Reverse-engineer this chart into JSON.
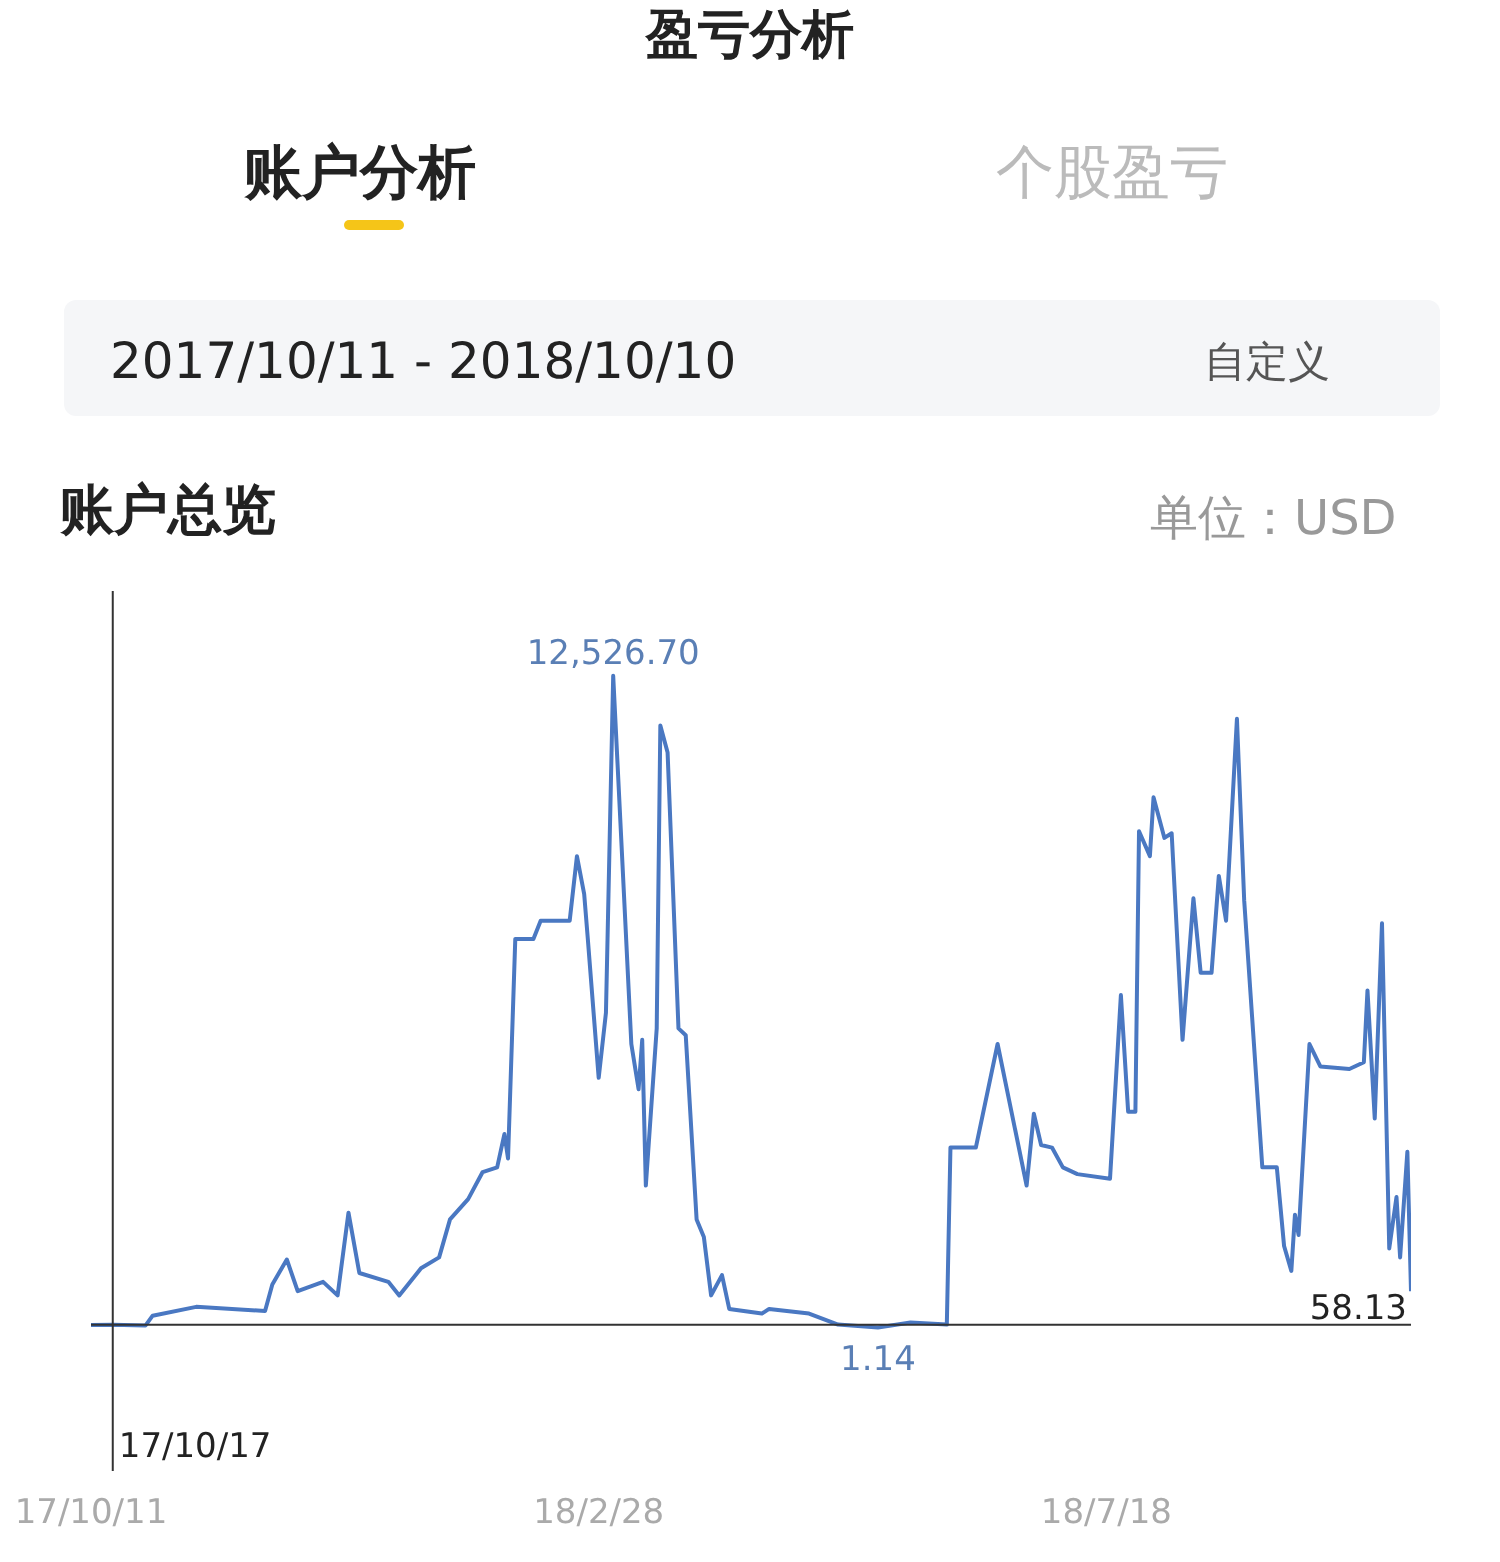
{
  "chart_data": {
    "type": "line",
    "title": "账户总览",
    "subtitle": "2017/10/11 - 2018/10/10",
    "annotations": [
      "盈亏分析",
      "账户分析",
      "个股盈亏",
      "自定义",
      "单位：USD"
    ],
    "xlim": [
      "2017-10-11",
      "2018-10-10"
    ],
    "xticks": [
      {
        "value": "2017-10-11",
        "label": "17/10/11"
      },
      {
        "value": "2018-02-28",
        "label": "18/2/28"
      },
      {
        "value": "2018-07-18",
        "label": "18/7/18"
      }
    ],
    "grid": false,
    "marker": "none",
    "line_style": "solid",
    "ref_lines": [
      {
        "axis": "x",
        "value": "2017-10-17",
        "label": "17/10/17",
        "color": "#333333"
      },
      {
        "axis": "y",
        "value": 58.13,
        "label": "58.13",
        "color": "#333333"
      }
    ],
    "series": [
      {
        "color": "#4a78c2",
        "x": [
          "2017-10-11",
          "2017-10-17",
          "2017-10-26",
          "2017-10-28",
          "2017-11-09",
          "2017-11-28",
          "2017-11-30",
          "2017-12-04",
          "2017-12-07",
          "2017-12-14",
          "2017-12-18",
          "2017-12-21",
          "2017-12-24",
          "2018-01-01",
          "2018-01-04",
          "2018-01-10",
          "2018-01-15",
          "2018-01-18",
          "2018-01-23",
          "2018-01-27",
          "2018-01-31",
          "2018-02-02",
          "2018-02-03",
          "2018-02-05",
          "2018-02-10",
          "2018-02-12",
          "2018-02-20",
          "2018-02-22",
          "2018-02-24",
          "2018-02-25",
          "2018-02-28",
          "2018-03-02",
          "2018-03-04",
          "2018-03-09",
          "2018-03-11",
          "2018-03-12",
          "2018-03-13",
          "2018-03-16",
          "2018-03-17",
          "2018-03-19",
          "2018-03-22",
          "2018-03-24",
          "2018-03-27",
          "2018-03-29",
          "2018-03-31",
          "2018-04-03",
          "2018-04-05",
          "2018-04-14",
          "2018-04-16",
          "2018-04-27",
          "2018-05-05",
          "2018-05-16",
          "2018-05-25",
          "2018-06-04",
          "2018-06-05",
          "2018-06-12",
          "2018-06-18",
          "2018-06-26",
          "2018-06-28",
          "2018-06-30",
          "2018-07-03",
          "2018-07-06",
          "2018-07-10",
          "2018-07-19",
          "2018-07-22",
          "2018-07-24",
          "2018-07-26",
          "2018-07-27",
          "2018-07-30",
          "2018-07-31",
          "2018-08-03",
          "2018-08-05",
          "2018-08-08",
          "2018-08-11",
          "2018-08-13",
          "2018-08-16",
          "2018-08-18",
          "2018-08-20",
          "2018-08-23",
          "2018-08-25",
          "2018-08-30",
          "2018-09-03",
          "2018-09-05",
          "2018-09-07",
          "2018-09-08",
          "2018-09-09",
          "2018-09-12",
          "2018-09-15",
          "2018-09-23",
          "2018-09-27",
          "2018-09-28",
          "2018-09-30",
          "2018-10-02",
          "2018-10-04",
          "2018-10-06",
          "2018-10-07",
          "2018-10-09",
          "2018-10-10"
        ],
        "values": [
          50,
          58.13,
          40,
          230,
          400,
          320,
          830,
          1310,
          700,
          880,
          620,
          2210,
          1050,
          880,
          620,
          1140,
          1350,
          2080,
          2470,
          2990,
          3080,
          3720,
          3250,
          7470,
          7470,
          7820,
          7820,
          9060,
          8330,
          7470,
          4800,
          6050,
          12526.7,
          5450,
          4580,
          5530,
          2730,
          5750,
          11570,
          11050,
          5750,
          5620,
          2080,
          1740,
          620,
          1010,
          360,
          270,
          360,
          270,
          60,
          1.14,
          100,
          60,
          3460,
          3460,
          5450,
          2730,
          4110,
          3510,
          3460,
          3080,
          2950,
          2860,
          6390,
          4150,
          4150,
          9540,
          9060,
          10190,
          9410,
          9500,
          5530,
          8250,
          6820,
          6820,
          8680,
          7820,
          11700,
          8210,
          3080,
          3080,
          1570,
          1090,
          2170,
          1780,
          5450,
          5020,
          4970,
          5100,
          6480,
          4020,
          7770,
          1520,
          2510,
          1350,
          3380,
          700
        ],
        "value_labels": [
          null,
          null,
          null,
          null,
          null,
          null,
          null,
          null,
          null,
          null,
          null,
          null,
          null,
          null,
          null,
          null,
          null,
          null,
          null,
          null,
          null,
          null,
          null,
          null,
          null,
          null,
          null,
          null,
          null,
          null,
          null,
          null,
          "12,526.70",
          null,
          null,
          null,
          null,
          null,
          null,
          null,
          null,
          null,
          null,
          null,
          null,
          null,
          null,
          null,
          null,
          null,
          null,
          "1.14",
          null,
          null,
          null,
          null,
          null,
          null,
          null,
          null,
          null,
          null,
          null,
          null,
          null,
          null,
          null,
          null,
          null,
          null,
          null,
          null,
          null,
          null,
          null,
          null,
          null,
          null,
          null,
          null,
          null,
          null,
          null,
          null,
          null,
          null,
          null,
          null,
          null,
          null,
          null,
          null,
          null,
          null,
          null,
          null,
          null,
          null
        ]
      }
    ]
  }
}
